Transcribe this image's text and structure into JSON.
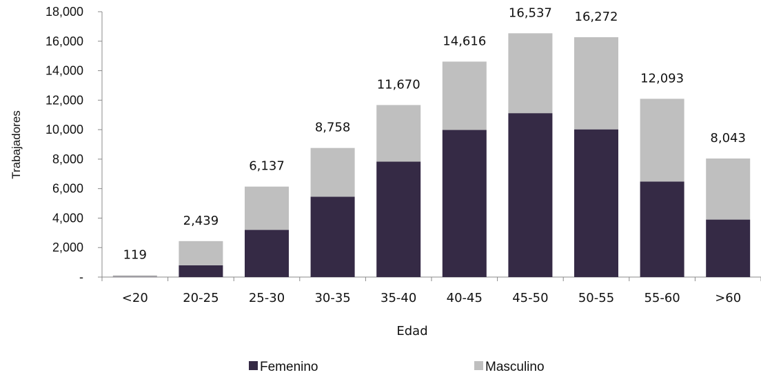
{
  "chart_data": {
    "type": "bar",
    "stacked": true,
    "title": "",
    "xlabel": "Edad",
    "ylabel": "Trabajadores",
    "ylim": [
      0,
      18000
    ],
    "yticks": [
      0,
      2000,
      4000,
      6000,
      8000,
      10000,
      12000,
      14000,
      16000,
      18000
    ],
    "ytick_labels": [
      "-",
      "2,000",
      "4,000",
      "6,000",
      "8,000",
      "10,000",
      "12,000",
      "14,000",
      "16,000",
      "18,000"
    ],
    "categories": [
      "<20",
      "20-25",
      "25-30",
      "30-35",
      "35-40",
      "40-45",
      "45-50",
      "50-55",
      "55-60",
      ">60"
    ],
    "series": [
      {
        "name": "Femenino",
        "color": "#352a45",
        "values": [
          20,
          800,
          3200,
          5450,
          7830,
          9980,
          11120,
          10020,
          6480,
          3900
        ]
      },
      {
        "name": "Masculino",
        "color": "#bfbfbf",
        "values": [
          99,
          1639,
          2937,
          3308,
          3840,
          4636,
          5417,
          6252,
          5613,
          4143
        ]
      }
    ],
    "totals": [
      119,
      2439,
      6137,
      8758,
      11670,
      14616,
      16537,
      16272,
      12093,
      8043
    ],
    "total_labels": [
      "119",
      "2,439",
      "6,137",
      "8,758",
      "11,670",
      "14,616",
      "16,537",
      "16,272",
      "12,093",
      "8,043"
    ],
    "grid": false,
    "legend_position": "bottom"
  }
}
